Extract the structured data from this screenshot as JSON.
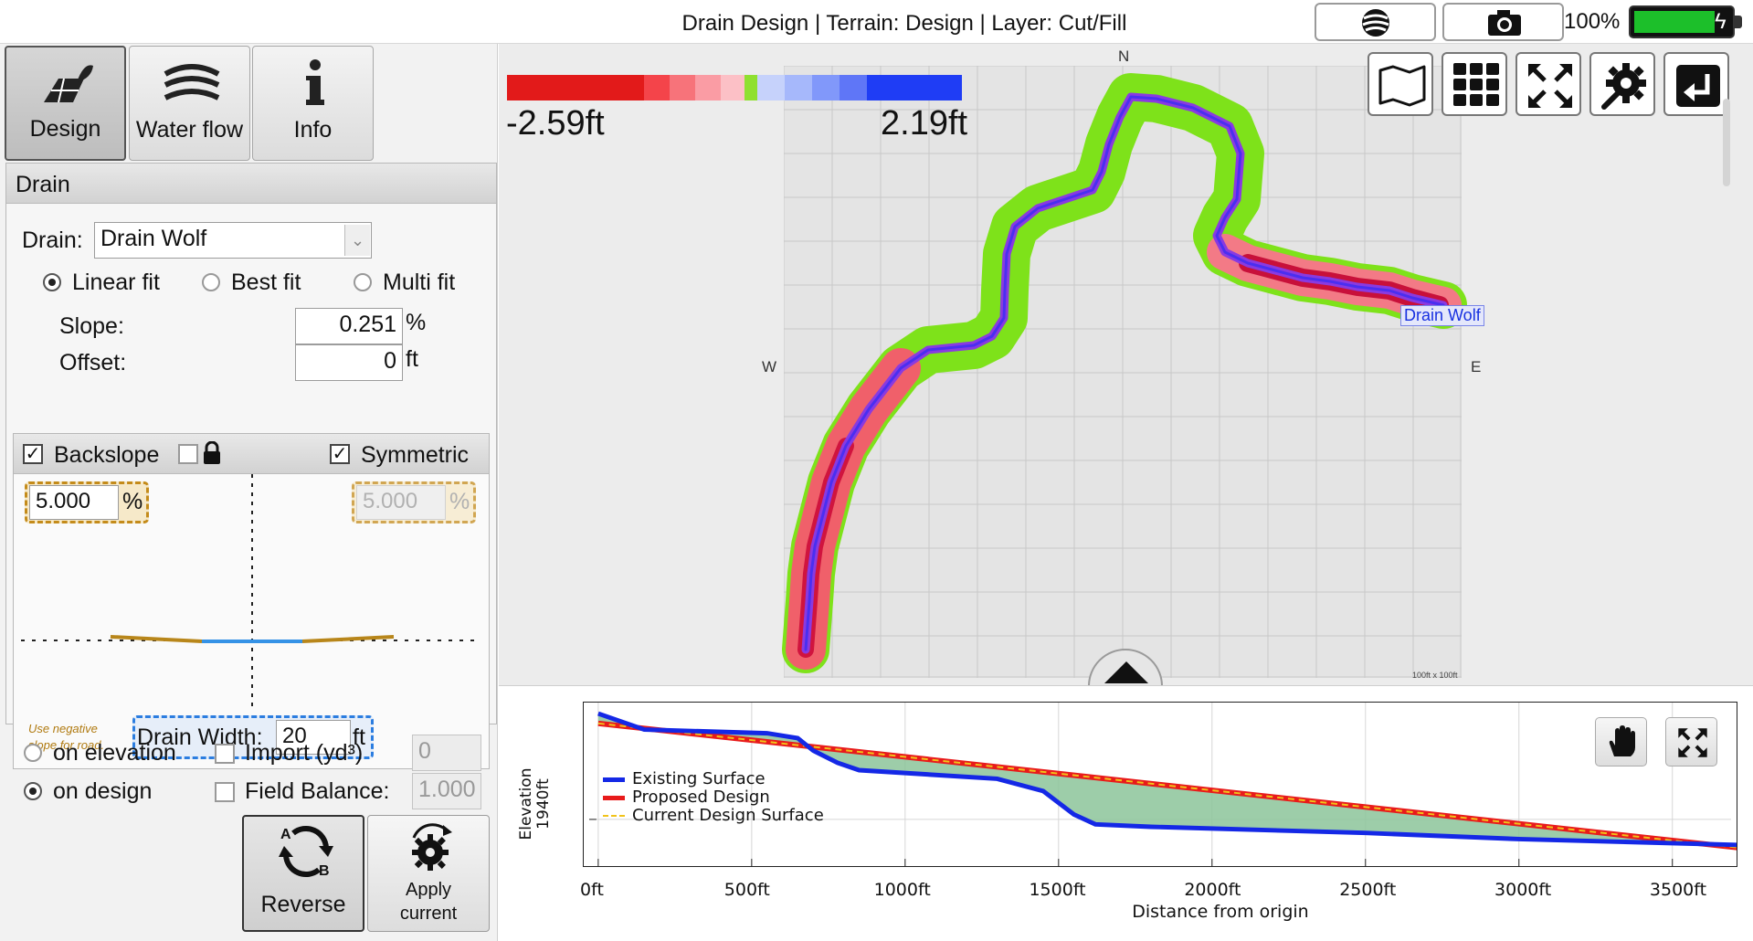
{
  "title": "Drain Design | Terrain: Design | Layer: Cut/Fill",
  "battery_percent": "100%",
  "battery_level": 1.0,
  "colors": {
    "accent": "#2b7de0",
    "cut": "#e21a1a",
    "fill": "#1f3df5",
    "drain_ok": "#7ee21a",
    "fill_area": "#8cc49a"
  },
  "tabs": [
    {
      "label": "Design",
      "icon": "design-icon"
    },
    {
      "label": "Water flow",
      "icon": "water-flow-icon"
    },
    {
      "label": "Info",
      "icon": "info-icon"
    }
  ],
  "drain_section": {
    "header": "Drain",
    "drain_label": "Drain:",
    "drain_value": "Drain Wolf",
    "fit_options": [
      "Linear fit",
      "Best fit",
      "Multi fit"
    ],
    "fit_selected": "Linear fit",
    "slope_label": "Slope:",
    "slope_value": "0.251",
    "slope_unit": "%",
    "offset_label": "Offset:",
    "offset_value": "0",
    "offset_unit": "ft"
  },
  "backslope": {
    "label": "Backslope",
    "checked": true,
    "symmetric_label": "Symmetric",
    "symmetric_checked": true,
    "left_value": "5.000",
    "right_value": "5.000",
    "unit": "%",
    "note": "Use negative slope for road.",
    "width_label": "Drain Width:",
    "width_value": "20",
    "width_unit": "ft"
  },
  "options": {
    "on_elevation": "on elevation",
    "on_design": "on design",
    "import_label": "Import (yd³)",
    "import_value": "0",
    "field_balance_label": "Field Balance:",
    "field_balance_value": "1.000"
  },
  "buttons": {
    "reverse": "Reverse",
    "apply_line1": "Apply",
    "apply_line2": "current"
  },
  "map": {
    "scale_min": "-2.59ft",
    "scale_max": "2.19ft",
    "compass": {
      "n": "N",
      "e": "E",
      "w": "W"
    },
    "drain_label": "Drain Wolf",
    "grid_note": "100ft x 100ft",
    "tools": [
      "map-icon",
      "grid-icon",
      "fit-extent-icon",
      "settings-icon",
      "exit-icon"
    ]
  },
  "profile": {
    "ylabel_line1": "Elevation",
    "ylabel_line2": "1940ft",
    "xlabel": "Distance from origin",
    "x_ticks": [
      "0ft",
      "500ft",
      "1000ft",
      "1500ft",
      "2000ft",
      "2500ft",
      "3000ft",
      "3500ft"
    ],
    "legend": [
      "Existing Surface",
      "Proposed Design",
      "Current Design Surface"
    ]
  },
  "chart_data": {
    "type": "line",
    "xlabel": "Distance from origin",
    "ylabel": "Elevation",
    "x_ticks": [
      "0ft",
      "500ft",
      "1000ft",
      "1500ft",
      "2000ft",
      "2500ft",
      "3000ft",
      "3500ft"
    ],
    "xlim": [
      0,
      3900
    ],
    "y_tick": "1940ft",
    "series": [
      {
        "name": "Existing Surface",
        "color": "#1428e6",
        "x": [
          0,
          150,
          550,
          650,
          700,
          780,
          850,
          1300,
          1450,
          1550,
          1620,
          1800,
          2500,
          3000,
          3900
        ],
        "y": [
          1948.6,
          1947.3,
          1947.0,
          1946.6,
          1945.6,
          1944.6,
          1944.0,
          1943.3,
          1942.3,
          1940.4,
          1939.6,
          1939.4,
          1938.9,
          1938.4,
          1937.8
        ]
      },
      {
        "name": "Proposed Design",
        "color": "#e81b1b",
        "x": [
          0,
          3900
        ],
        "y": [
          1947.8,
          1937.2
        ]
      },
      {
        "name": "Current Design Surface",
        "color": "#f1c31a",
        "x": [
          0,
          3900
        ],
        "y": [
          1947.8,
          1937.2
        ]
      }
    ],
    "legend_position": "bottom-left"
  }
}
